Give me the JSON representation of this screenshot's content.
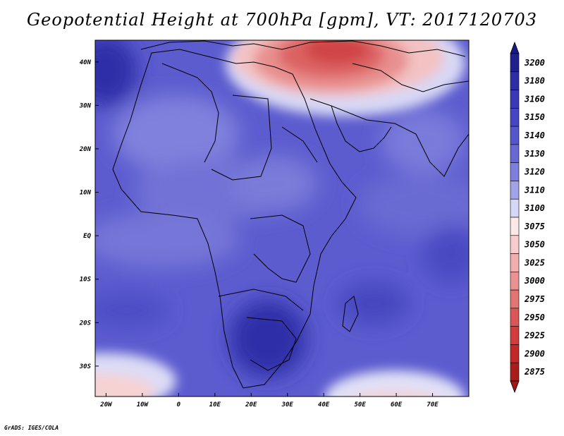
{
  "title": "Geopotential Height at 700hPa [gpm], VT: 2017120703",
  "credit": "GrADS: IGES/COLA",
  "map": {
    "lon_range": [
      -23,
      80
    ],
    "lat_range": [
      -37,
      45
    ],
    "x_ticks": [
      {
        "lon": -20,
        "label": "20W"
      },
      {
        "lon": -10,
        "label": "10W"
      },
      {
        "lon": 0,
        "label": "0"
      },
      {
        "lon": 10,
        "label": "10E"
      },
      {
        "lon": 20,
        "label": "20E"
      },
      {
        "lon": 30,
        "label": "30E"
      },
      {
        "lon": 40,
        "label": "40E"
      },
      {
        "lon": 50,
        "label": "50E"
      },
      {
        "lon": 60,
        "label": "60E"
      },
      {
        "lon": 70,
        "label": "70E"
      }
    ],
    "y_ticks": [
      {
        "lat": 40,
        "label": "40N"
      },
      {
        "lat": 30,
        "label": "30N"
      },
      {
        "lat": 20,
        "label": "20N"
      },
      {
        "lat": 10,
        "label": "10N"
      },
      {
        "lat": 0,
        "label": "EQ"
      },
      {
        "lat": -10,
        "label": "10S"
      },
      {
        "lat": -20,
        "label": "20S"
      },
      {
        "lat": -30,
        "label": "30S"
      }
    ]
  },
  "colorbar": {
    "levels": [
      {
        "label": "3200",
        "color": "#1f1f8f"
      },
      {
        "label": "3180",
        "color": "#2d2da6"
      },
      {
        "label": "3160",
        "color": "#3a3ab8"
      },
      {
        "label": "3150",
        "color": "#4646c4"
      },
      {
        "label": "3140",
        "color": "#5656cc"
      },
      {
        "label": "3130",
        "color": "#6868d4"
      },
      {
        "label": "3120",
        "color": "#7e7edc"
      },
      {
        "label": "3110",
        "color": "#a2a2e8"
      },
      {
        "label": "3100",
        "color": "#d6d6f6"
      },
      {
        "label": "3075",
        "color": "#fbe8e8"
      },
      {
        "label": "3050",
        "color": "#f7cccc"
      },
      {
        "label": "3025",
        "color": "#f1aeae"
      },
      {
        "label": "3000",
        "color": "#ea9292"
      },
      {
        "label": "2975",
        "color": "#e27474"
      },
      {
        "label": "2950",
        "color": "#db5757"
      },
      {
        "label": "2925",
        "color": "#d33c3c"
      },
      {
        "label": "2900",
        "color": "#c22828"
      },
      {
        "label": "2875",
        "color": "#a81c1c"
      }
    ],
    "top_arrow_color": "#1a1a80",
    "bottom_arrow_color": "#a01818"
  }
}
